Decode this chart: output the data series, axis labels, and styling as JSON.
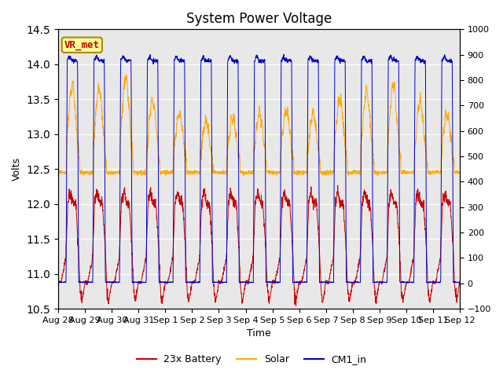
{
  "title": "System Power Voltage",
  "xlabel": "Time",
  "ylabel": "Volts",
  "ylim_left": [
    10.5,
    14.5
  ],
  "ylim_right": [
    -100,
    1000
  ],
  "yticks_left": [
    10.5,
    11.0,
    11.5,
    12.0,
    12.5,
    13.0,
    13.5,
    14.0,
    14.5
  ],
  "yticks_right": [
    -100,
    0,
    100,
    200,
    300,
    400,
    500,
    600,
    700,
    800,
    900,
    1000
  ],
  "x_tick_labels": [
    "Aug 28",
    "Aug 29",
    "Aug 30",
    "Aug 31",
    "Sep 1",
    "Sep 2",
    "Sep 3",
    "Sep 4",
    "Sep 5",
    "Sep 6",
    "Sep 7",
    "Sep 8",
    "Sep 9",
    "Sep 10",
    "Sep 11",
    "Sep 12"
  ],
  "legend_labels": [
    "23x Battery",
    "Solar",
    "CM1_in"
  ],
  "legend_colors": [
    "#cc0000",
    "#ffaa00",
    "#0000cc"
  ],
  "annotation_text": "VR_met",
  "annotation_color": "#cc0000",
  "annotation_bg": "#ffff99",
  "annotation_edge": "#aa8800",
  "bg_color": "#e8e8e8",
  "grid_color": "#ffffff",
  "title_fontsize": 12,
  "label_fontsize": 9,
  "tick_fontsize": 8
}
